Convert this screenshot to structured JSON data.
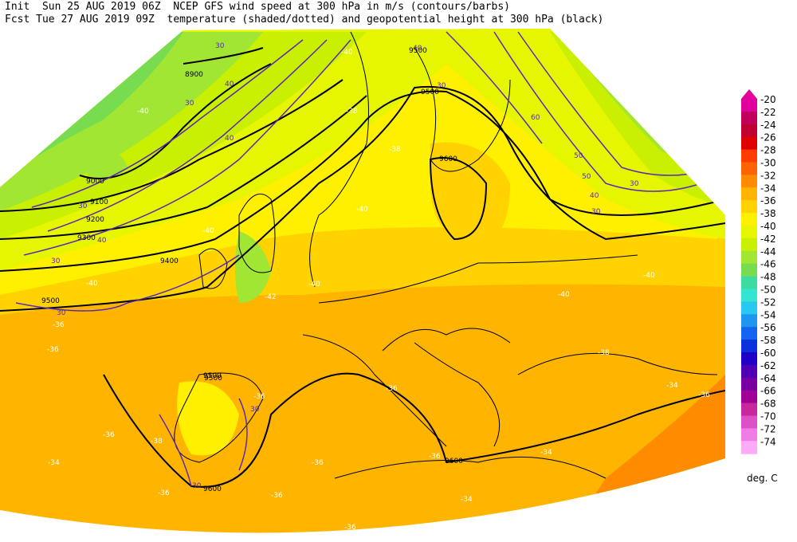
{
  "header": {
    "line1_left": "Init  Sun 25 AUG 2019 06Z",
    "line1_right": "NCEP GFS wind speed at 300 hPa in m/s (contours/barbs)",
    "line2_left": "Fcst Tue 27 AUG 2019 09Z",
    "line2_right": "temperature (shaded/dotted) and geopotential height at 300 hPa (black)"
  },
  "colorbar": {
    "units": "deg. C",
    "levels": [
      "-20",
      "-22",
      "-24",
      "-26",
      "-28",
      "-30",
      "-32",
      "-34",
      "-36",
      "-38",
      "-40",
      "-42",
      "-44",
      "-46",
      "-48",
      "-50",
      "-52",
      "-54",
      "-56",
      "-58",
      "-60",
      "-62",
      "-64",
      "-66",
      "-68",
      "-70",
      "-72",
      "-74"
    ],
    "colors": [
      "#e0009e",
      "#c0005a",
      "#c00030",
      "#e00000",
      "#ff3c00",
      "#ff6400",
      "#ff8c00",
      "#ffb400",
      "#ffd200",
      "#fff000",
      "#e6f500",
      "#c8f000",
      "#a0e632",
      "#78dc50",
      "#3cdca0",
      "#32e6d2",
      "#28c8f0",
      "#1e96f0",
      "#1464f0",
      "#0a32dc",
      "#1e00c8",
      "#5000b4",
      "#7800a0",
      "#a00096",
      "#c8289c",
      "#dc50c8",
      "#f07ce6",
      "#ffaaf5"
    ],
    "tip_color": "#e6009a"
  },
  "map": {
    "height_labels": [
      "8900",
      "9000",
      "9100",
      "9200",
      "9300",
      "9400",
      "9500",
      "9500",
      "9500",
      "9600",
      "9500",
      "9600",
      "9500",
      "9600"
    ],
    "wind_labels": [
      "40",
      "30",
      "40",
      "30",
      "30",
      "40",
      "30",
      "40",
      "30",
      "40",
      "30",
      "50",
      "60",
      "50",
      "30",
      "30",
      "30",
      "30"
    ],
    "temp_labels": [
      "-40",
      "-38",
      "-40",
      "-40",
      "-42",
      "-40",
      "-36",
      "-36",
      "-36",
      "-38",
      "-36",
      "-36",
      "-36",
      "-36",
      "-34",
      "-40",
      "-40",
      "-38",
      "-34",
      "-36",
      "-40",
      "-38",
      "-40",
      "-36",
      "-34",
      "-36",
      "-36",
      "-34"
    ]
  }
}
